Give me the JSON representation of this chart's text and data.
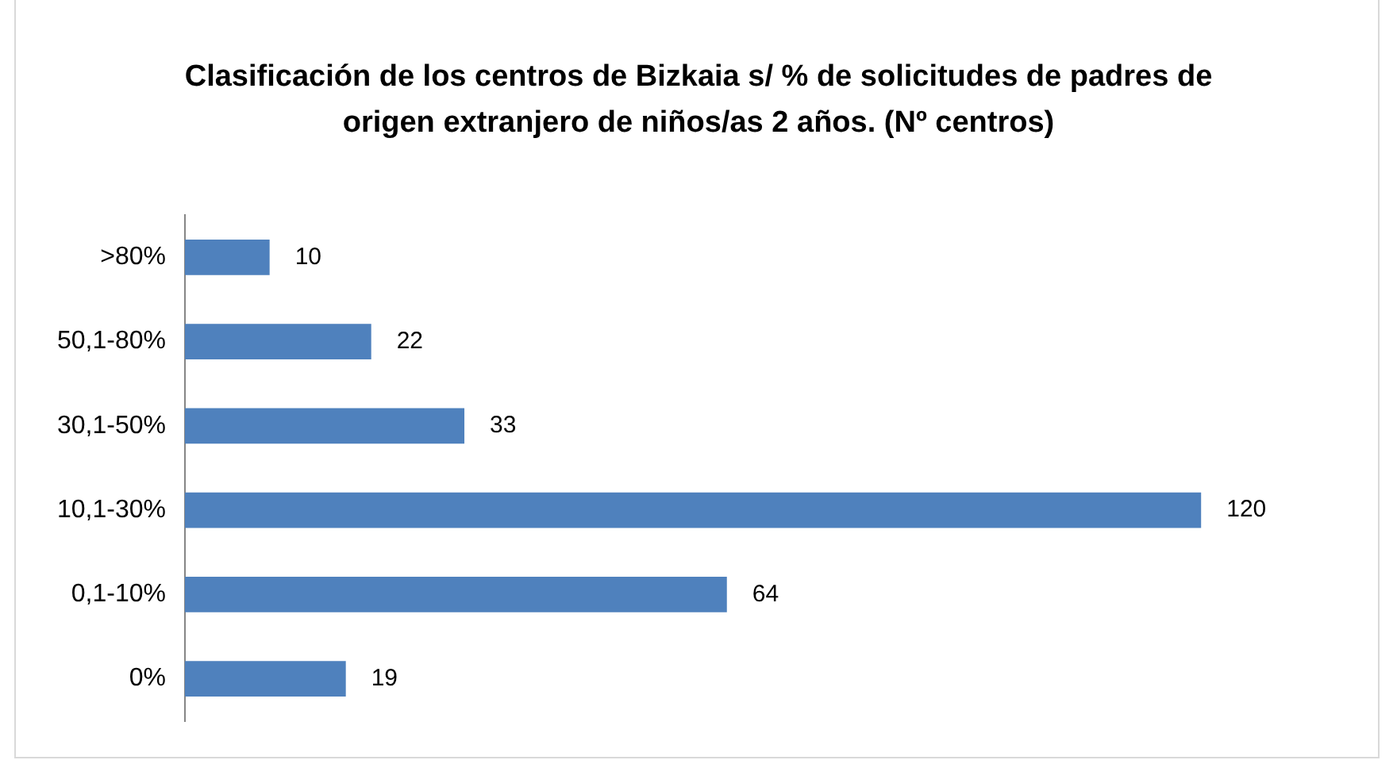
{
  "chart_data": {
    "type": "bar",
    "orientation": "horizontal",
    "title": "Clasificación de los centros de Bizkaia s/ % de solicitudes de padres de origen extranjero de niños/as 2 años. (Nº centros)",
    "categories": [
      ">80%",
      "50,1-80%",
      "30,1-50%",
      "10,1-30%",
      "0,1-10%",
      "0%"
    ],
    "values": [
      10,
      22,
      33,
      120,
      64,
      19
    ],
    "color": "#4f81bd",
    "data_labels": true
  }
}
